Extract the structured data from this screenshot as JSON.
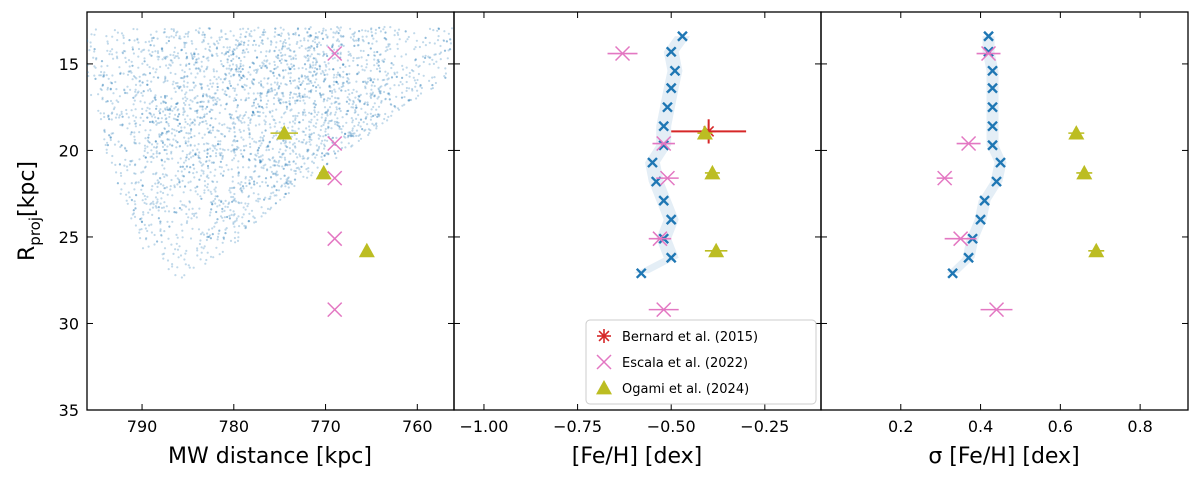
{
  "chart_data": [
    {
      "type": "scatter",
      "panel": "left",
      "xlabel": "MW distance [kpc]",
      "ylabel": "R",
      "ylabel_sub": "proj",
      "ylabel_unit": "[kpc]",
      "xlim": [
        796,
        756
      ],
      "ylim": [
        35,
        12
      ],
      "x_ticks": [
        790,
        780,
        770,
        760
      ],
      "y_ticks": [
        15,
        20,
        25,
        30,
        35
      ],
      "colors": {
        "sample": "#1f77b4",
        "escala": "#e377c2",
        "ogami": "#bcbd22"
      },
      "sample_cloud_description_shape": [
        {
          "x": 796,
          "y": 13
        },
        {
          "x": 756,
          "y": 12.8
        },
        {
          "x": 757,
          "y": 16
        },
        {
          "x": 765,
          "y": 19
        },
        {
          "x": 773,
          "y": 22
        },
        {
          "x": 780,
          "y": 25.5
        },
        {
          "x": 786,
          "y": 27.8
        },
        {
          "x": 790,
          "y": 26
        },
        {
          "x": 794,
          "y": 20
        },
        {
          "x": 796,
          "y": 16
        }
      ],
      "series": [
        {
          "name": "Escala et al. (2022)",
          "marker": "x",
          "points": [
            {
              "x": 769,
              "y": 14.4
            },
            {
              "x": 769,
              "y": 19.6
            },
            {
              "x": 769,
              "y": 21.6
            },
            {
              "x": 769,
              "y": 25.1
            },
            {
              "x": 769,
              "y": 29.2
            }
          ]
        },
        {
          "name": "Ogami et al. (2024)",
          "marker": "triangle",
          "points": [
            {
              "x": 774.5,
              "y": 19.0,
              "xerr": 1.5
            },
            {
              "x": 770.2,
              "y": 21.3,
              "xerr": 0.5
            },
            {
              "x": 765.5,
              "y": 25.8,
              "xerr": 0.3
            }
          ]
        }
      ]
    },
    {
      "type": "scatter",
      "panel": "middle",
      "xlabel": "[Fe/H] [dex]",
      "xlim": [
        -1.08,
        -0.1
      ],
      "ylim": [
        35,
        12
      ],
      "x_ticks": [
        -1.0,
        -0.75,
        -0.5,
        -0.25
      ],
      "x_tick_labels": [
        "−1.00",
        "−0.75",
        "−0.50",
        "−0.25"
      ],
      "colors": {
        "profile": "#1f77b4",
        "bernard": "#d62728",
        "escala": "#e377c2",
        "ogami": "#bcbd22"
      },
      "series": [
        {
          "name": "profile",
          "marker": "x",
          "points": [
            {
              "x": -0.47,
              "y": 13.4
            },
            {
              "x": -0.5,
              "y": 14.3
            },
            {
              "x": -0.49,
              "y": 15.4
            },
            {
              "x": -0.5,
              "y": 16.4
            },
            {
              "x": -0.51,
              "y": 17.5
            },
            {
              "x": -0.52,
              "y": 18.6
            },
            {
              "x": -0.52,
              "y": 19.7
            },
            {
              "x": -0.55,
              "y": 20.7
            },
            {
              "x": -0.54,
              "y": 21.8
            },
            {
              "x": -0.52,
              "y": 22.9
            },
            {
              "x": -0.5,
              "y": 24.0
            },
            {
              "x": -0.52,
              "y": 25.1
            },
            {
              "x": -0.5,
              "y": 26.2
            },
            {
              "x": -0.58,
              "y": 27.1
            }
          ]
        },
        {
          "name": "Bernard et al. (2015)",
          "marker": "asterisk",
          "points": [
            {
              "x": -0.4,
              "y": 18.9,
              "xerr": 0.1,
              "yerr": 0.7
            }
          ]
        },
        {
          "name": "Escala et al. (2022)",
          "marker": "x",
          "points": [
            {
              "x": -0.63,
              "y": 14.4,
              "xerr": 0.04
            },
            {
              "x": -0.52,
              "y": 19.6,
              "xerr": 0.03
            },
            {
              "x": -0.51,
              "y": 21.6,
              "xerr": 0.03
            },
            {
              "x": -0.53,
              "y": 25.1,
              "xerr": 0.03
            },
            {
              "x": -0.52,
              "y": 29.2,
              "xerr": 0.04
            }
          ]
        },
        {
          "name": "Ogami et al. (2024)",
          "marker": "triangle",
          "points": [
            {
              "x": -0.41,
              "y": 19.0,
              "xerr": 0.02
            },
            {
              "x": -0.39,
              "y": 21.3,
              "xerr": 0.02
            },
            {
              "x": -0.38,
              "y": 25.8,
              "xerr": 0.03
            }
          ]
        }
      ],
      "legend": {
        "placement": "lower-right",
        "entries": [
          {
            "label": "Bernard et al. (2015)",
            "marker": "asterisk",
            "color": "#d62728"
          },
          {
            "label": "Escala et al. (2022)",
            "marker": "x",
            "color": "#e377c2"
          },
          {
            "label": "Ogami et al. (2024)",
            "marker": "triangle",
            "color": "#bcbd22"
          }
        ]
      }
    },
    {
      "type": "scatter",
      "panel": "right",
      "xlabel": "σ [Fe/H] [dex]",
      "xlim": [
        0.0,
        0.92
      ],
      "ylim": [
        35,
        12
      ],
      "x_ticks": [
        0.2,
        0.4,
        0.6,
        0.8
      ],
      "colors": {
        "profile": "#1f77b4",
        "escala": "#e377c2",
        "ogami": "#bcbd22"
      },
      "series": [
        {
          "name": "profile",
          "marker": "x",
          "points": [
            {
              "x": 0.42,
              "y": 13.4
            },
            {
              "x": 0.42,
              "y": 14.3
            },
            {
              "x": 0.43,
              "y": 15.4
            },
            {
              "x": 0.43,
              "y": 16.4
            },
            {
              "x": 0.43,
              "y": 17.5
            },
            {
              "x": 0.43,
              "y": 18.6
            },
            {
              "x": 0.43,
              "y": 19.7
            },
            {
              "x": 0.45,
              "y": 20.7
            },
            {
              "x": 0.44,
              "y": 21.8
            },
            {
              "x": 0.41,
              "y": 22.9
            },
            {
              "x": 0.4,
              "y": 24.0
            },
            {
              "x": 0.38,
              "y": 25.1
            },
            {
              "x": 0.37,
              "y": 26.2
            },
            {
              "x": 0.33,
              "y": 27.1
            }
          ]
        },
        {
          "name": "Escala et al. (2022)",
          "marker": "x",
          "points": [
            {
              "x": 0.42,
              "y": 14.4,
              "xerr": 0.03
            },
            {
              "x": 0.37,
              "y": 19.6,
              "xerr": 0.03
            },
            {
              "x": 0.31,
              "y": 21.6,
              "xerr": 0.02
            },
            {
              "x": 0.35,
              "y": 25.1,
              "xerr": 0.04
            },
            {
              "x": 0.44,
              "y": 29.2,
              "xerr": 0.04
            }
          ]
        },
        {
          "name": "Ogami et al. (2024)",
          "marker": "triangle",
          "points": [
            {
              "x": 0.64,
              "y": 19.0,
              "xerr": 0.02
            },
            {
              "x": 0.66,
              "y": 21.3,
              "xerr": 0.02
            },
            {
              "x": 0.69,
              "y": 25.8,
              "xerr": 0.02
            }
          ]
        }
      ]
    }
  ]
}
